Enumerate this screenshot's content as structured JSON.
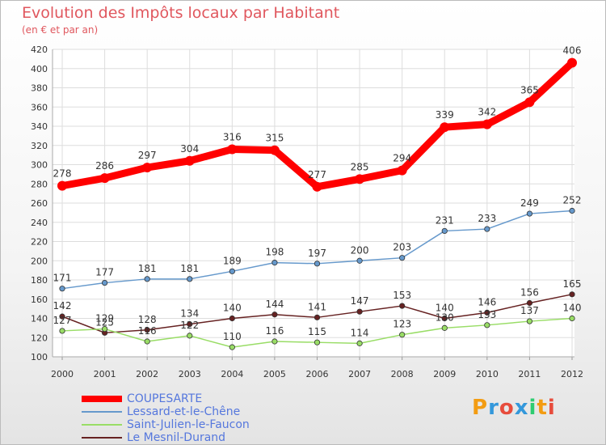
{
  "title": "Evolution des Impôts locaux par Habitant",
  "subtitle": "(en € et par an)",
  "logo": {
    "text": "Proxiti",
    "colors": [
      "#f39c12",
      "#3498db",
      "#e74c3c",
      "#3498db",
      "#2ecc71",
      "#f39c12",
      "#e74c3c"
    ]
  },
  "chart_data": {
    "type": "line",
    "x": [
      2000,
      2001,
      2002,
      2003,
      2004,
      2005,
      2006,
      2007,
      2008,
      2009,
      2010,
      2011,
      2012
    ],
    "ylim": [
      100,
      420
    ],
    "yticks": [
      100,
      120,
      140,
      160,
      180,
      200,
      220,
      240,
      260,
      280,
      300,
      320,
      340,
      360,
      380,
      400,
      420
    ],
    "grid": true,
    "legend_position": "bottom-left",
    "series": [
      {
        "name": "COUPESARTE",
        "color": "#ff0000",
        "values": [
          278,
          286,
          297,
          304,
          316,
          315,
          277,
          285,
          294,
          339,
          342,
          365,
          406
        ]
      },
      {
        "name": "Lessard-et-le-Chêne",
        "color": "#6699cc",
        "values": [
          171,
          177,
          181,
          181,
          189,
          198,
          197,
          200,
          203,
          231,
          233,
          249,
          252
        ]
      },
      {
        "name": "Saint-Julien-le-Faucon",
        "color": "#99dd66",
        "values": [
          127,
          129,
          116,
          122,
          110,
          116,
          115,
          114,
          123,
          130,
          133,
          137,
          140
        ]
      },
      {
        "name": "Le Mesnil-Durand",
        "color": "#662222",
        "values": [
          142,
          125,
          128,
          134,
          140,
          144,
          141,
          147,
          153,
          140,
          146,
          156,
          165
        ]
      }
    ]
  }
}
